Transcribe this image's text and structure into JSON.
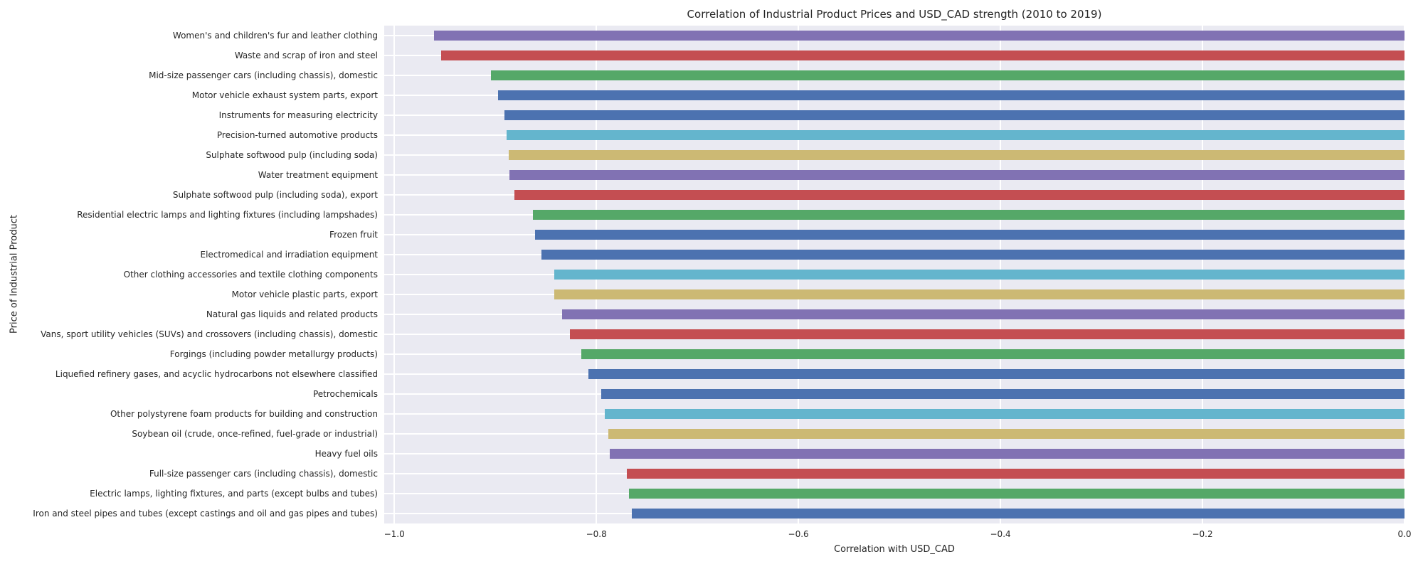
{
  "chart_data": {
    "type": "bar",
    "orientation": "horizontal",
    "title": "Correlation of Industrial Product Prices and USD_CAD strength (2010 to 2019)",
    "xlabel": "Correlation with USD_CAD",
    "ylabel": "Price of Industrial Product",
    "xlim": [
      -1.01,
      0.0
    ],
    "x_ticks": [
      -1.0,
      -0.8,
      -0.6,
      -0.4,
      -0.2,
      0.0
    ],
    "x_tick_labels": [
      "−1.0",
      "−0.8",
      "−0.6",
      "−0.4",
      "−0.2",
      "0.0"
    ],
    "grid": true,
    "legend": "none",
    "colors": {
      "plot_background": "#EAEAF2",
      "grid": "#FFFFFF",
      "text": "#262626",
      "palette_blue": "#4C72B0",
      "palette_green": "#55A868",
      "palette_red": "#C44E52",
      "palette_purple": "#8172B3",
      "palette_cyan": "#64B5CD",
      "palette_olive": "#CCB974"
    },
    "bars": [
      {
        "label": "Women's and children's fur and leather clothing",
        "value": -0.961,
        "color": "#8172B3"
      },
      {
        "label": "Waste and scrap of iron and steel",
        "value": -0.954,
        "color": "#C44E52"
      },
      {
        "label": "Mid-size passenger cars (including chassis), domestic",
        "value": -0.904,
        "color": "#55A868"
      },
      {
        "label": "Motor vehicle exhaust system parts, export",
        "value": -0.897,
        "color": "#4C72B0"
      },
      {
        "label": "Instruments for measuring electricity",
        "value": -0.891,
        "color": "#4C72B0"
      },
      {
        "label": "Precision-turned automotive products",
        "value": -0.889,
        "color": "#64B5CD"
      },
      {
        "label": "Sulphate softwood pulp (including soda)",
        "value": -0.887,
        "color": "#CCB974"
      },
      {
        "label": "Water treatment equipment",
        "value": -0.886,
        "color": "#8172B3"
      },
      {
        "label": "Sulphate softwood pulp (including soda), export",
        "value": -0.881,
        "color": "#C44E52"
      },
      {
        "label": "Residential electric lamps and lighting fixtures (including lampshades)",
        "value": -0.863,
        "color": "#55A868"
      },
      {
        "label": "Frozen fruit",
        "value": -0.861,
        "color": "#4C72B0"
      },
      {
        "label": "Electromedical and irradiation equipment",
        "value": -0.854,
        "color": "#4C72B0"
      },
      {
        "label": "Other clothing accessories and textile clothing components",
        "value": -0.842,
        "color": "#64B5CD"
      },
      {
        "label": "Motor vehicle plastic parts, export",
        "value": -0.842,
        "color": "#CCB974"
      },
      {
        "label": "Natural gas liquids and related products",
        "value": -0.834,
        "color": "#8172B3"
      },
      {
        "label": "Vans, sport utility vehicles (SUVs) and crossovers (including chassis), domestic",
        "value": -0.826,
        "color": "#C44E52"
      },
      {
        "label": "Forgings (including powder metallurgy products)",
        "value": -0.815,
        "color": "#55A868"
      },
      {
        "label": "Liquefied refinery gases, and acyclic hydrocarbons not elsewhere classified",
        "value": -0.808,
        "color": "#4C72B0"
      },
      {
        "label": "Petrochemicals",
        "value": -0.795,
        "color": "#4C72B0"
      },
      {
        "label": "Other polystyrene foam products for building and construction",
        "value": -0.792,
        "color": "#64B5CD"
      },
      {
        "label": "Soybean oil (crude, once-refined, fuel-grade or industrial)",
        "value": -0.788,
        "color": "#CCB974"
      },
      {
        "label": "Heavy fuel oils",
        "value": -0.787,
        "color": "#8172B3"
      },
      {
        "label": "Full-size passenger cars (including chassis), domestic",
        "value": -0.77,
        "color": "#C44E52"
      },
      {
        "label": "Electric lamps, lighting fixtures, and parts (except bulbs and tubes)",
        "value": -0.768,
        "color": "#55A868"
      },
      {
        "label": "Iron and steel pipes and tubes (except castings and oil and gas pipes and tubes)",
        "value": -0.765,
        "color": "#4C72B0"
      }
    ]
  }
}
